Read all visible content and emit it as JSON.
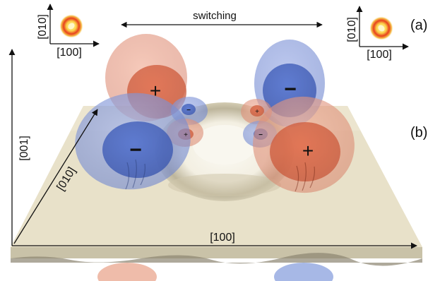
{
  "panels": {
    "a": "(a)",
    "b": "(b)"
  },
  "switching_label": "switching",
  "inset_axes": {
    "vertical": "[010]",
    "horizontal": "[100]"
  },
  "main_axes": {
    "vertical": "[001]",
    "diagonal": "[010]",
    "horizontal": "[100]"
  },
  "lobe_signs": {
    "plus": "+",
    "minus": "−"
  },
  "colors": {
    "positive_lobe": "#e07a55",
    "negative_lobe": "#4d6ec4",
    "surface": "#e9e1c8",
    "inset_ring": "#f08a1a"
  }
}
